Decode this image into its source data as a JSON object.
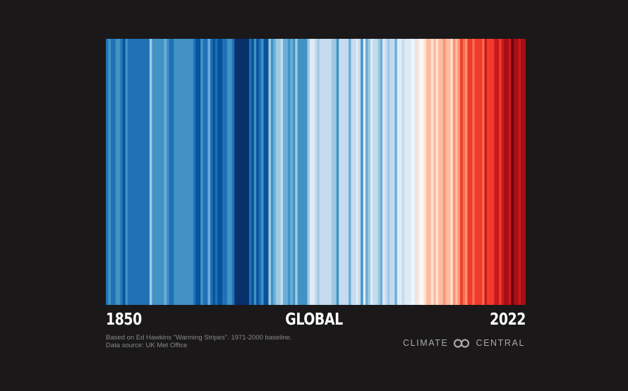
{
  "chart_data": {
    "type": "heatmap",
    "title": "",
    "region": "GLOBAL",
    "x_start_label": "1850",
    "x_end_label": "2022",
    "years": [
      1850,
      2022
    ],
    "stripe_colors": [
      "#2171b5",
      "#4292c6",
      "#2171b5",
      "#2171b5",
      "#4292c6",
      "#4292c6",
      "#2171b5",
      "#08519c",
      "#4292c6",
      "#2171b5",
      "#2171b5",
      "#2171b5",
      "#2171b5",
      "#2171b5",
      "#2171b5",
      "#2171b5",
      "#2171b5",
      "#2171b5",
      "#9ecae1",
      "#4292c6",
      "#4292c6",
      "#4292c6",
      "#4292c6",
      "#4292c6",
      "#6baed6",
      "#4292c6",
      "#2171b5",
      "#2171b5",
      "#4292c6",
      "#4292c6",
      "#4292c6",
      "#4292c6",
      "#4292c6",
      "#4292c6",
      "#4292c6",
      "#4292c6",
      "#2171b5",
      "#08519c",
      "#08519c",
      "#4292c6",
      "#2171b5",
      "#2171b5",
      "#6baed6",
      "#2171b5",
      "#08519c",
      "#2171b5",
      "#08519c",
      "#08519c",
      "#2171b5",
      "#2171b5",
      "#4292c6",
      "#4292c6",
      "#2171b5",
      "#08306b",
      "#08306b",
      "#08306b",
      "#08306b",
      "#08306b",
      "#08306b",
      "#2171b5",
      "#08519c",
      "#4292c6",
      "#08519c",
      "#2171b5",
      "#4292c6",
      "#08519c",
      "#08519c",
      "#9ecae1",
      "#4292c6",
      "#6baed6",
      "#9ecae1",
      "#9ecae1",
      "#c6dbef",
      "#6baed6",
      "#6baed6",
      "#4292c6",
      "#6baed6",
      "#4292c6",
      "#9ecae1",
      "#4292c6",
      "#4292c6",
      "#4292c6",
      "#4292c6",
      "#9ecae1",
      "#deebf7",
      "#deebf7",
      "#c6dbef",
      "#9ecae1",
      "#c6dbef",
      "#c6dbef",
      "#c6dbef",
      "#c6dbef",
      "#c6dbef",
      "#9ecae1",
      "#9ecae1",
      "#4292c6",
      "#c6dbef",
      "#c6dbef",
      "#c6dbef",
      "#c6dbef",
      "#6baed6",
      "#c6dbef",
      "#c6dbef",
      "#deebf7",
      "#c6dbef",
      "#4292c6",
      "#deebf7",
      "#6baed6",
      "#9ecae1",
      "#deebf7",
      "#c6dbef",
      "#c6dbef",
      "#9ecae1",
      "#6baed6",
      "#deebf7",
      "#c6dbef",
      "#9ecae1",
      "#c6dbef",
      "#c6dbef",
      "#6baed6",
      "#deebf7",
      "#deebf7",
      "#c6dbef",
      "#deebf7",
      "#deebf7",
      "#deebf7",
      "#f7f7f7",
      "#deebf7",
      "#fee0d2",
      "#f7f7f7",
      "#f7f7f7",
      "#fee0d2",
      "#fcbba1",
      "#fcbba1",
      "#fee0d2",
      "#fcbba1",
      "#fee0d2",
      "#fcbba1",
      "#fcbba1",
      "#fc9272",
      "#fcbba1",
      "#fcbba1",
      "#fee0d2",
      "#fc9272",
      "#fcbba1",
      "#fc9272",
      "#ef3b2c",
      "#fb6a4a",
      "#fc9272",
      "#ef3b2c",
      "#ef3b2c",
      "#fb6a4a",
      "#ef3b2c",
      "#ef3b2c",
      "#ef3b2c",
      "#fb6a4a",
      "#cb181d",
      "#ef3b2c",
      "#ef3b2c",
      "#ef3b2c",
      "#cb181d",
      "#cb181d",
      "#ef3b2c",
      "#cb181d",
      "#a50f15",
      "#a50f15",
      "#cb181d",
      "#67000d",
      "#a50f15",
      "#a50f15",
      "#cb181d",
      "#a50f15",
      "#a50f15"
    ]
  },
  "credits": {
    "line1": "Based on Ed Hawkins \"Warming Stripes\". 1971-2000 baseline.",
    "line2": "Data source: UK Met Office"
  },
  "logo": {
    "left_text": "CLIMATE",
    "right_text": "CENTRAL",
    "icon": "linked-rings-icon",
    "color": "#a9a9a9"
  }
}
